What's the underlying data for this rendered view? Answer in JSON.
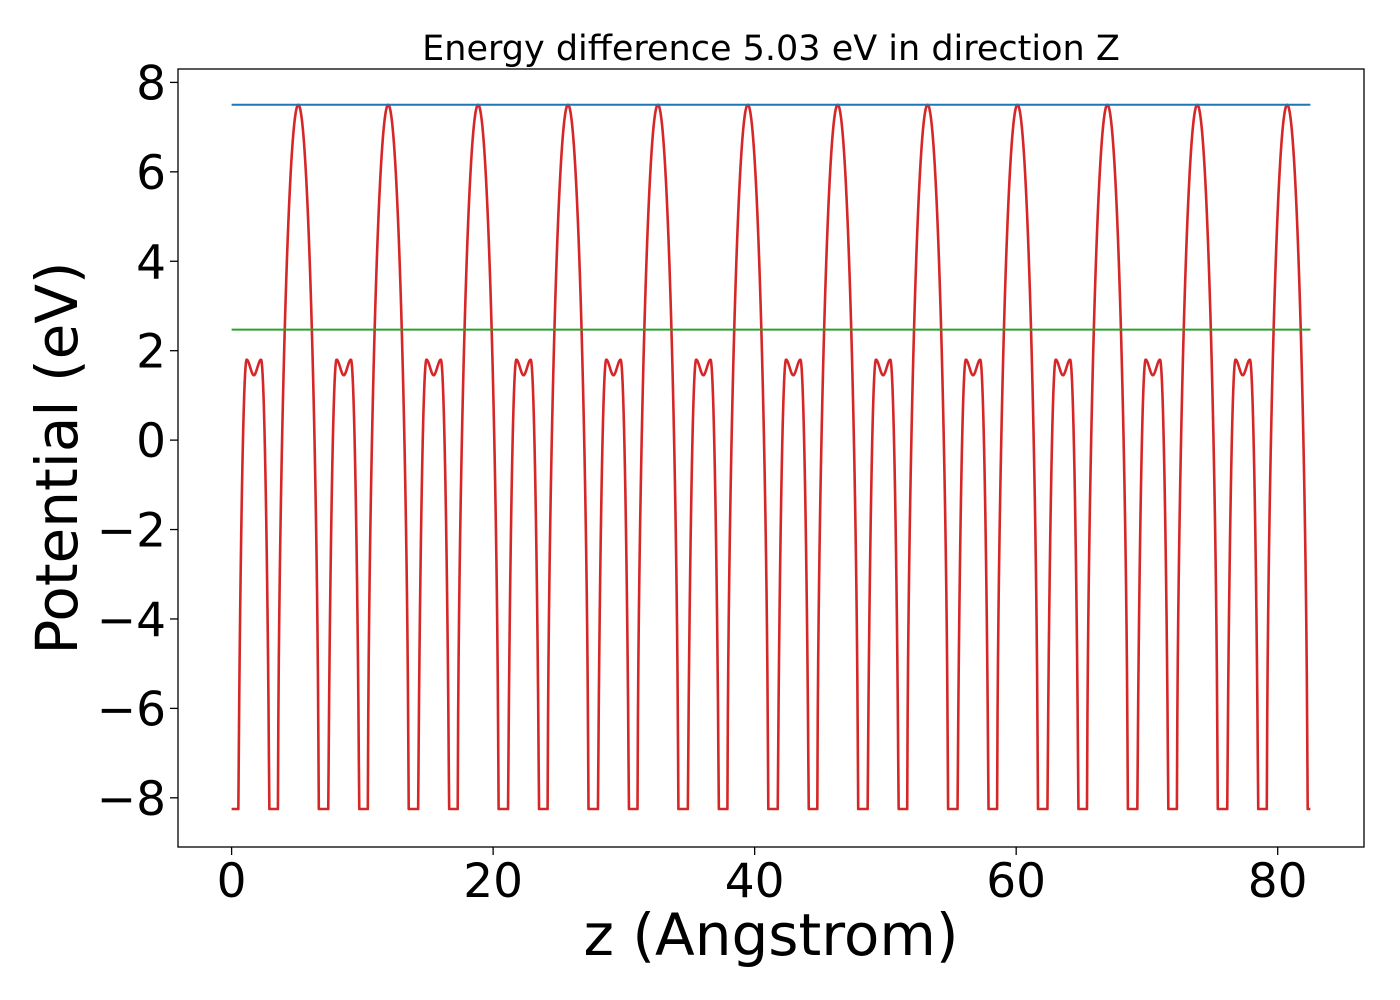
{
  "chart_data": {
    "type": "line",
    "title": "Energy difference 5.03 eV in direction Z",
    "xlabel": "z (Angstrom)",
    "ylabel": "Potential (eV)",
    "xlim": [
      -4.1,
      86.6
    ],
    "ylim": [
      -9.1,
      8.3
    ],
    "x_ticks": [
      0,
      20,
      40,
      60,
      80
    ],
    "x_tick_labels": [
      "0",
      "20",
      "40",
      "60",
      "80"
    ],
    "y_ticks": [
      -8,
      -6,
      -4,
      -2,
      0,
      2,
      4,
      6,
      8
    ],
    "y_tick_labels": [
      "−8",
      "−6",
      "−4",
      "−2",
      "0",
      "2",
      "4",
      "6",
      "8"
    ],
    "grid": false,
    "legend": "none",
    "series": [
      {
        "color": "#d62728",
        "style": "potential-profile",
        "x_range": [
          0,
          82.5
        ],
        "period": 6.875,
        "count": 12,
        "min_value": -8.25,
        "max_value": 7.5,
        "shoulder_value": 1.8,
        "shoulder_dip_value": 1.45
      },
      {
        "color": "#1f77b4",
        "style": "hline",
        "x_range": [
          0,
          82.5
        ],
        "value": 7.5
      },
      {
        "color": "#2ca02c",
        "style": "hline",
        "x_range": [
          0,
          82.5
        ],
        "value": 2.47
      }
    ]
  }
}
